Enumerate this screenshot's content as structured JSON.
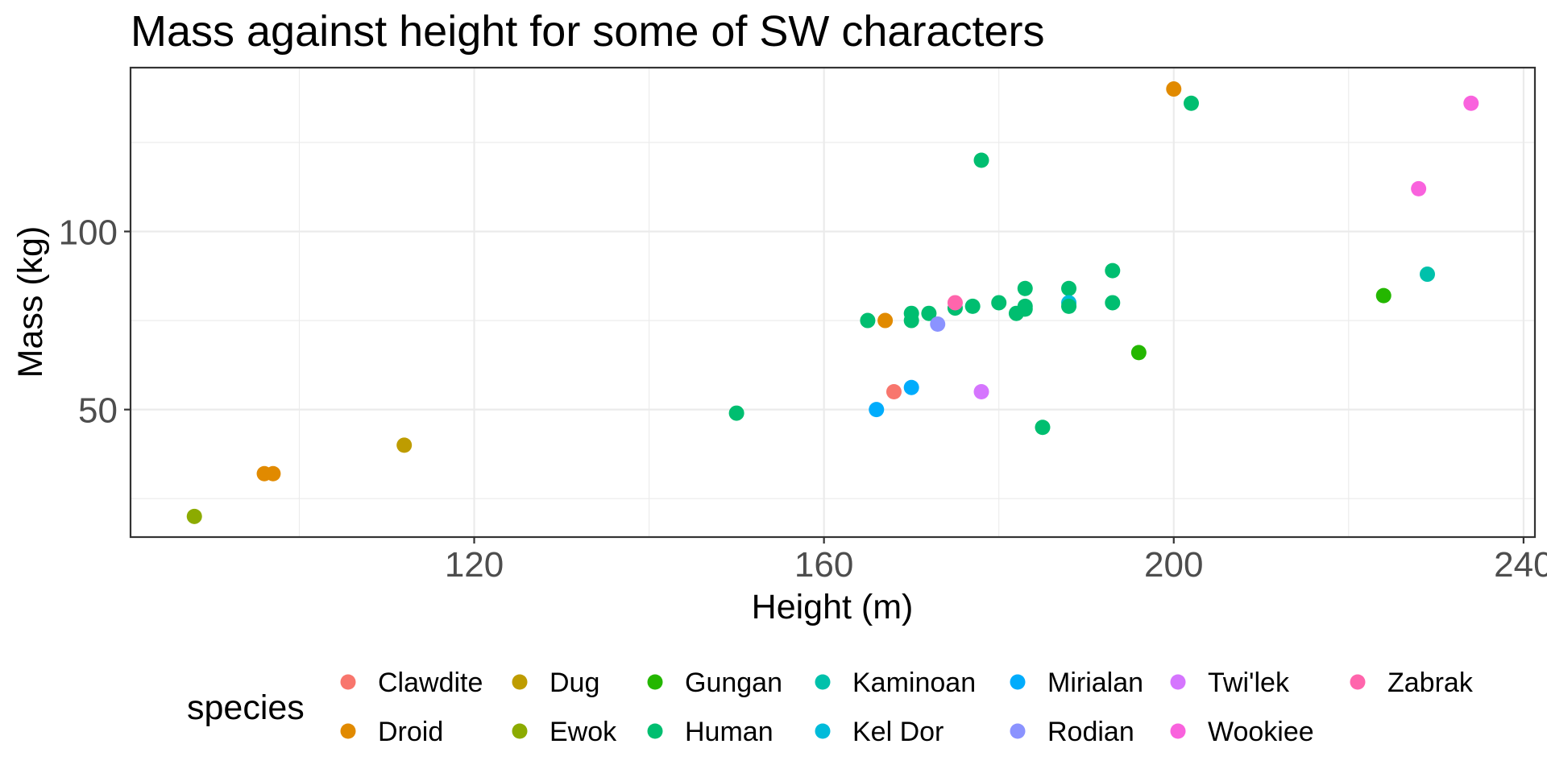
{
  "chart_data": {
    "type": "scatter",
    "title": "Mass against height for some of SW characters",
    "xlabel": "Height (m)",
    "ylabel": "Mass (kg)",
    "xlim": [
      80.7,
      241.3
    ],
    "ylim": [
      14.2,
      146
    ],
    "x_ticks": [
      120,
      160,
      200,
      240
    ],
    "x_minor": [
      100,
      140,
      180,
      220
    ],
    "y_ticks": [
      50,
      100
    ],
    "y_minor": [
      25,
      75,
      125
    ],
    "grid": true,
    "legend": {
      "title": "species",
      "position": "bottom",
      "items": [
        {
          "label": "Clawdite",
          "color": "#F8766D"
        },
        {
          "label": "Droid",
          "color": "#E18A00"
        },
        {
          "label": "Dug",
          "color": "#BE9C00"
        },
        {
          "label": "Ewok",
          "color": "#8CAB00"
        },
        {
          "label": "Gungan",
          "color": "#24B700"
        },
        {
          "label": "Human",
          "color": "#00BE70"
        },
        {
          "label": "Kaminoan",
          "color": "#00C1AB"
        },
        {
          "label": "Kel Dor",
          "color": "#00BBDA"
        },
        {
          "label": "Mirialan",
          "color": "#00ACFC"
        },
        {
          "label": "Rodian",
          "color": "#8B93FF"
        },
        {
          "label": "Twi'lek",
          "color": "#D575FE"
        },
        {
          "label": "Wookiee",
          "color": "#F962DD"
        },
        {
          "label": "Zabrak",
          "color": "#FF65AC"
        }
      ]
    },
    "points": [
      {
        "species": "Ewok",
        "x": 88,
        "y": 20
      },
      {
        "species": "Droid",
        "x": 96,
        "y": 32
      },
      {
        "species": "Droid",
        "x": 97,
        "y": 32
      },
      {
        "species": "Dug",
        "x": 112,
        "y": 40
      },
      {
        "species": "Human",
        "x": 150,
        "y": 49
      },
      {
        "species": "Human",
        "x": 165,
        "y": 75
      },
      {
        "species": "Droid",
        "x": 167,
        "y": 75
      },
      {
        "species": "Mirialan",
        "x": 166,
        "y": 50
      },
      {
        "species": "Clawdite",
        "x": 168,
        "y": 55
      },
      {
        "species": "Mirialan",
        "x": 170,
        "y": 56.2
      },
      {
        "species": "Human",
        "x": 170,
        "y": 77
      },
      {
        "species": "Human",
        "x": 170,
        "y": 75
      },
      {
        "species": "Human",
        "x": 172,
        "y": 77
      },
      {
        "species": "Rodian",
        "x": 173,
        "y": 74
      },
      {
        "species": "Human",
        "x": 175,
        "y": 78.5
      },
      {
        "species": "Zabrak",
        "x": 175,
        "y": 80
      },
      {
        "species": "Human",
        "x": 177,
        "y": 79
      },
      {
        "species": "Twi'lek",
        "x": 178,
        "y": 55
      },
      {
        "species": "Human",
        "x": 178,
        "y": 120
      },
      {
        "species": "Human",
        "x": 180,
        "y": 80
      },
      {
        "species": "Human",
        "x": 182,
        "y": 77
      },
      {
        "species": "Human",
        "x": 183,
        "y": 84
      },
      {
        "species": "Human",
        "x": 183,
        "y": 78.2
      },
      {
        "species": "Human",
        "x": 183,
        "y": 79
      },
      {
        "species": "Human",
        "x": 185,
        "y": 45
      },
      {
        "species": "Human",
        "x": 188,
        "y": 84
      },
      {
        "species": "Kel Dor",
        "x": 188,
        "y": 80
      },
      {
        "species": "Human",
        "x": 188,
        "y": 79
      },
      {
        "species": "Human",
        "x": 193,
        "y": 89
      },
      {
        "species": "Human",
        "x": 193,
        "y": 80
      },
      {
        "species": "Gungan",
        "x": 196,
        "y": 66
      },
      {
        "species": "Droid",
        "x": 200,
        "y": 140
      },
      {
        "species": "Human",
        "x": 202,
        "y": 136
      },
      {
        "species": "Gungan",
        "x": 224,
        "y": 82
      },
      {
        "species": "Wookiee",
        "x": 228,
        "y": 112
      },
      {
        "species": "Kaminoan",
        "x": 229,
        "y": 88
      },
      {
        "species": "Wookiee",
        "x": 234,
        "y": 136
      }
    ]
  }
}
